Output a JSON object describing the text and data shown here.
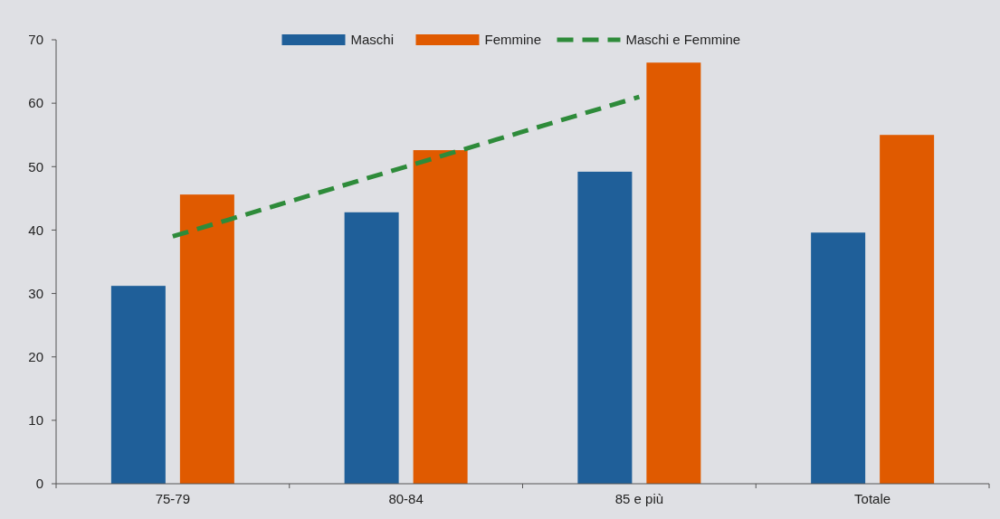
{
  "chart_data": {
    "type": "bar",
    "categories": [
      "75-79",
      "80-84",
      "85 e più",
      "Totale"
    ],
    "series": [
      {
        "name": "Maschi",
        "color": "#1f5f99",
        "values": [
          31.2,
          42.8,
          49.2,
          39.6
        ]
      },
      {
        "name": "Femmine",
        "color": "#e05a00",
        "values": [
          45.6,
          52.6,
          66.4,
          55.0
        ]
      },
      {
        "name": "Maschi e Femmine",
        "type": "line",
        "color": "#2e8b3a",
        "line_style": "dashed",
        "values": [
          39,
          50,
          61,
          null
        ]
      }
    ],
    "ylim": [
      0,
      70
    ],
    "yticks": [
      0,
      10,
      20,
      30,
      40,
      50,
      60,
      70
    ],
    "grid": false,
    "legend": "top"
  }
}
